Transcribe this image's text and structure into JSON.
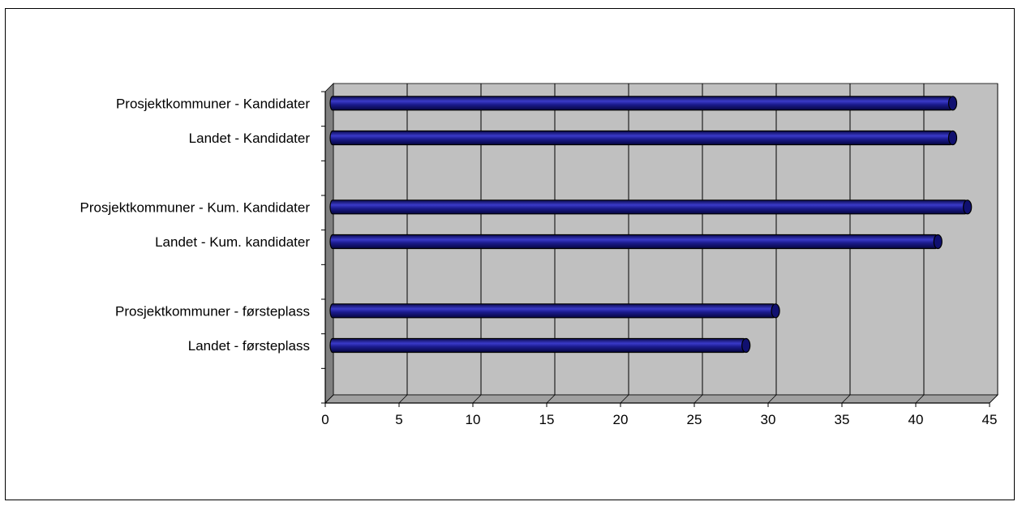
{
  "chart_data": {
    "type": "bar",
    "orientation": "horizontal",
    "title": "",
    "xlabel": "",
    "ylabel": "",
    "categories": [
      "Prosjektkommuner - Kandidater",
      "Landet - Kandidater",
      "Prosjektkommuner - Kum. Kandidater",
      "Landet - Kum. kandidater",
      "Prosjektkommuner - førsteplass",
      "Landet - førsteplass"
    ],
    "values": [
      42.5,
      42.5,
      43.5,
      41.5,
      30.5,
      28.5
    ],
    "xlim": [
      0,
      45
    ],
    "xticks": [
      0,
      5,
      10,
      15,
      20,
      25,
      30,
      35,
      40,
      45
    ],
    "grid": true,
    "legend": "none",
    "colors": {
      "bar": "#1a1a8c",
      "bar_highlight": "#4a4ad8",
      "plot_bg": "#c0c0c0",
      "side_wall": "#808080",
      "floor": "#a0a0a0",
      "gridline": "#000000"
    }
  }
}
